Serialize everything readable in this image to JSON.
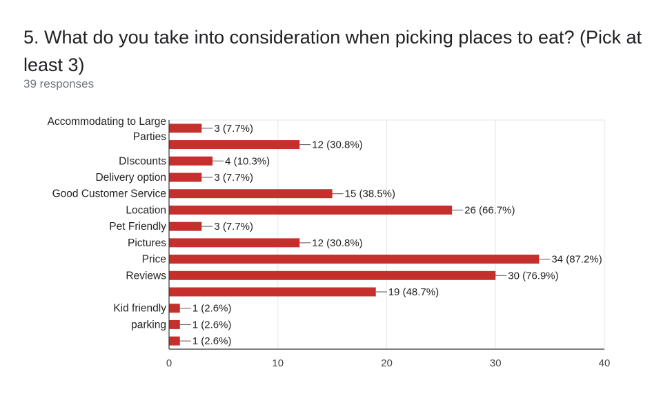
{
  "question": {
    "title": "5. What do you take into consideration when picking places to eat? (Pick at least 3)",
    "responses": "39 responses"
  },
  "colors": {
    "bar": "#c5302c",
    "grid": "#e6e6e6",
    "axis": "#333333"
  },
  "chart_data": {
    "type": "bar",
    "orientation": "horizontal",
    "total_responses": 39,
    "xlim": [
      0,
      40
    ],
    "xticks": [
      0,
      10,
      20,
      30,
      40
    ],
    "grid": true,
    "legend": "none",
    "categories": [
      "Accommodating to Large Parties",
      "",
      "DIscounts",
      "Delivery option",
      "Good Customer Service",
      "Location",
      "Pet Friendly",
      "Pictures",
      "Price",
      "Reviews",
      "",
      "Kid friendly",
      "parking",
      ""
    ],
    "values": [
      3,
      12,
      4,
      3,
      15,
      26,
      3,
      12,
      34,
      30,
      19,
      1,
      1,
      1
    ],
    "labels": [
      "3 (7.7%)",
      "12 (30.8%)",
      "4 (10.3%)",
      "3 (7.7%)",
      "15 (38.5%)",
      "26 (66.7%)",
      "3 (7.7%)",
      "12 (30.8%)",
      "34 (87.2%)",
      "30 (76.9%)",
      "19 (48.7%)",
      "1 (2.6%)",
      "1 (2.6%)",
      "1 (2.6%)"
    ]
  }
}
